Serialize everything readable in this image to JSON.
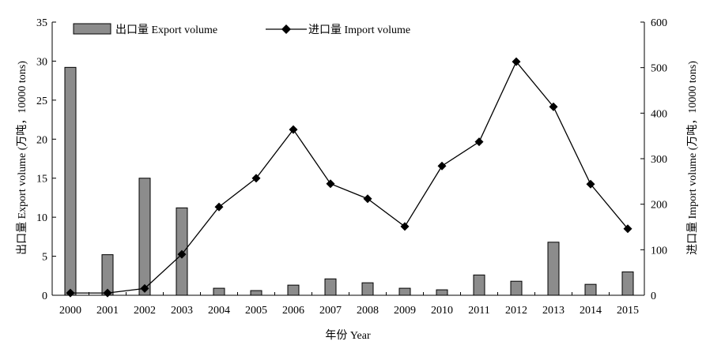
{
  "chart_data": {
    "type": "bar-line-dual-axis",
    "xlabel": "年份 Year",
    "ylabel_left": "出口量 Export volume (万吨，10000 tons)",
    "ylabel_right": "进口量 Import volume (万吨，10000 tons)",
    "ylim_left": [
      0,
      35
    ],
    "ylim_right": [
      0,
      600
    ],
    "yticks_left": [
      "0",
      "5",
      "10",
      "15",
      "20",
      "25",
      "30",
      "35"
    ],
    "yticks_right": [
      "0",
      "100",
      "200",
      "300",
      "400",
      "500",
      "600"
    ],
    "categories": [
      "2000",
      "2001",
      "2002",
      "2003",
      "2004",
      "2005",
      "2006",
      "2007",
      "2008",
      "2009",
      "2010",
      "2011",
      "2012",
      "2013",
      "2014",
      "2015"
    ],
    "legend_position": "top-left",
    "series": [
      {
        "name": "出口量 Export volume",
        "kind": "bar",
        "axis": "left",
        "values": [
          29.2,
          5.2,
          15.0,
          11.2,
          0.9,
          0.6,
          1.3,
          2.1,
          1.6,
          0.9,
          0.7,
          2.6,
          1.8,
          6.8,
          1.4,
          3.0
        ]
      },
      {
        "name": "进口量 Import volume",
        "kind": "line",
        "axis": "right",
        "values": [
          5,
          5,
          15,
          90,
          194,
          257,
          364,
          245,
          212,
          151,
          284,
          337,
          513,
          414,
          244,
          146
        ]
      }
    ]
  }
}
